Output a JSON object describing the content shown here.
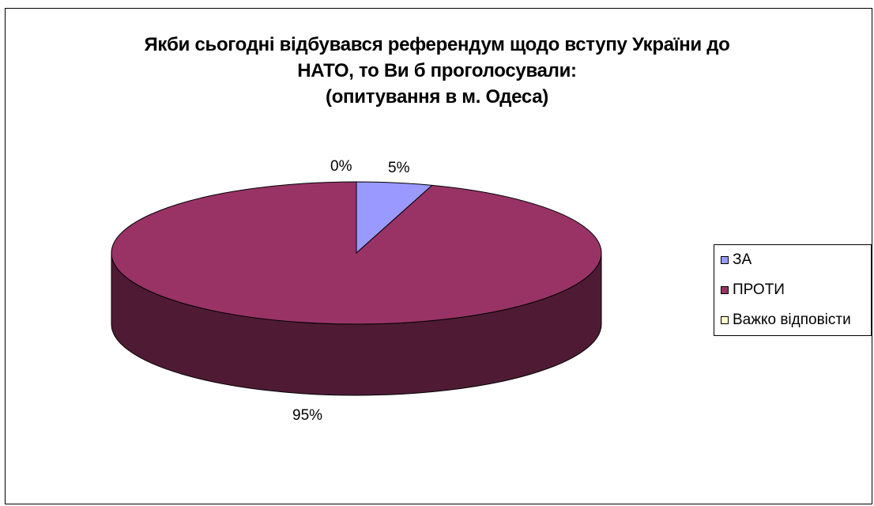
{
  "chart_data": {
    "type": "pie",
    "title_lines": [
      "Якби сьогодні відбувався референдум щодо вступу України до",
      "НАТО, то Ви б проголосували:",
      "(опитування в м. Одеса)"
    ],
    "categories": [
      "ЗА",
      "ПРОТИ",
      "Важко відповісти"
    ],
    "values": [
      5,
      95,
      0
    ],
    "data_labels": [
      "5%",
      "95%",
      "0%"
    ],
    "colors": [
      "#9999FF",
      "#993366",
      "#FFFFCC"
    ],
    "side_colors": [
      "#5C5C99",
      "#4F1B34",
      "#99997A"
    ],
    "legend_position": "right",
    "style": "3d"
  }
}
